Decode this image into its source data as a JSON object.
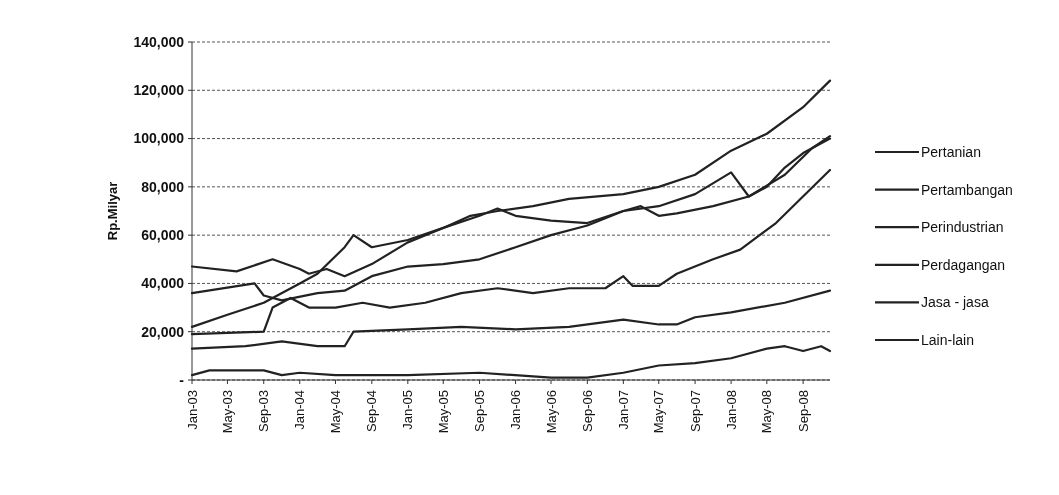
{
  "chart_data": {
    "type": "line",
    "ylabel": "Rp.Milyar",
    "grid": "y",
    "legend": "right",
    "marker": "none",
    "line_style": "solid",
    "xlim": [
      "2003-01",
      "2008-12"
    ],
    "xticks": [
      {
        "value": "2003-01",
        "label": "Jan-03"
      },
      {
        "value": "2003-05",
        "label": "May-03"
      },
      {
        "value": "2003-09",
        "label": "Sep-03"
      },
      {
        "value": "2004-01",
        "label": "Jan-04"
      },
      {
        "value": "2004-05",
        "label": "May-04"
      },
      {
        "value": "2004-09",
        "label": "Sep-04"
      },
      {
        "value": "2005-01",
        "label": "Jan-05"
      },
      {
        "value": "2005-05",
        "label": "May-05"
      },
      {
        "value": "2005-09",
        "label": "Sep-05"
      },
      {
        "value": "2006-01",
        "label": "Jan-06"
      },
      {
        "value": "2006-05",
        "label": "May-06"
      },
      {
        "value": "2006-09",
        "label": "Sep-06"
      },
      {
        "value": "2007-01",
        "label": "Jan-07"
      },
      {
        "value": "2007-05",
        "label": "May-07"
      },
      {
        "value": "2007-09",
        "label": "Sep-07"
      },
      {
        "value": "2008-01",
        "label": "Jan-08"
      },
      {
        "value": "2008-05",
        "label": "May-08"
      },
      {
        "value": "2008-09",
        "label": "Sep-08"
      }
    ],
    "ylim": [
      0,
      140000
    ],
    "yticks": [
      {
        "value": 0,
        "label": "-"
      },
      {
        "value": 20000,
        "label": "20,000"
      },
      {
        "value": 40000,
        "label": "40,000"
      },
      {
        "value": 60000,
        "label": "60,000"
      },
      {
        "value": 80000,
        "label": "80,000"
      },
      {
        "value": 100000,
        "label": "100,000"
      },
      {
        "value": 120000,
        "label": "120,000"
      },
      {
        "value": 140000,
        "label": "140,000"
      }
    ],
    "series": [
      {
        "name": "Pertanian",
        "color": "#222222",
        "x": [
          "2003-01",
          "2003-07",
          "2003-11",
          "2004-03",
          "2004-06",
          "2004-07",
          "2005-01",
          "2005-07",
          "2006-01",
          "2006-07",
          "2007-01",
          "2007-05",
          "2007-07",
          "2007-09",
          "2008-01",
          "2008-07",
          "2008-12"
        ],
        "values": [
          13000,
          14000,
          16000,
          14000,
          14000,
          20000,
          21000,
          22000,
          21000,
          22000,
          25000,
          23000,
          23000,
          26000,
          28000,
          32000,
          37000
        ]
      },
      {
        "name": "Pertambangan",
        "color": "#222222",
        "x": [
          "2003-01",
          "2003-03",
          "2003-09",
          "2003-11",
          "2004-01",
          "2004-05",
          "2005-01",
          "2005-09",
          "2006-05",
          "2006-09",
          "2007-01",
          "2007-05",
          "2007-09",
          "2008-01",
          "2008-05",
          "2008-07",
          "2008-09",
          "2008-11",
          "2008-12"
        ],
        "values": [
          2000,
          4000,
          4000,
          2000,
          3000,
          2000,
          2000,
          3000,
          1000,
          1000,
          3000,
          6000,
          7000,
          9000,
          13000,
          14000,
          12000,
          14000,
          12000
        ]
      },
      {
        "name": "Perindustrian",
        "color": "#222222",
        "x": [
          "2003-01",
          "2003-06",
          "2003-10",
          "2004-01",
          "2004-02",
          "2004-04",
          "2004-06",
          "2004-09",
          "2005-01",
          "2005-05",
          "2005-09",
          "2005-11",
          "2006-01",
          "2006-05",
          "2006-09",
          "2007-01",
          "2007-03",
          "2007-05",
          "2007-07",
          "2007-11",
          "2008-03",
          "2008-07",
          "2008-10",
          "2008-12"
        ],
        "values": [
          47000,
          45000,
          50000,
          46000,
          44000,
          46000,
          43000,
          48000,
          57000,
          63000,
          68000,
          71000,
          68000,
          66000,
          65000,
          70000,
          72000,
          68000,
          69000,
          72000,
          76000,
          85000,
          96000,
          101000
        ]
      },
      {
        "name": "Perdagangan",
        "color": "#222222",
        "x": [
          "2003-01",
          "2003-05",
          "2003-09",
          "2004-01",
          "2004-03",
          "2004-06",
          "2004-07",
          "2004-09",
          "2005-01",
          "2005-05",
          "2005-08",
          "2005-11",
          "2006-03",
          "2006-07",
          "2007-01",
          "2007-05",
          "2007-09",
          "2008-01",
          "2008-05",
          "2008-09",
          "2008-12"
        ],
        "values": [
          22000,
          27000,
          32000,
          40000,
          44000,
          55000,
          60000,
          55000,
          58000,
          63000,
          68000,
          70000,
          72000,
          75000,
          77000,
          80000,
          85000,
          95000,
          102000,
          113000,
          124000
        ]
      },
      {
        "name": "Jasa - jasa",
        "color": "#222222",
        "x": [
          "2003-01",
          "2003-08",
          "2003-09",
          "2003-11",
          "2004-03",
          "2004-06",
          "2004-09",
          "2005-01",
          "2005-05",
          "2005-09",
          "2006-01",
          "2006-05",
          "2006-09",
          "2007-01",
          "2007-05",
          "2007-09",
          "2008-01",
          "2008-03",
          "2008-05",
          "2008-07",
          "2008-09",
          "2008-12"
        ],
        "values": [
          36000,
          40000,
          35000,
          33000,
          36000,
          37000,
          43000,
          47000,
          48000,
          50000,
          55000,
          60000,
          64000,
          70000,
          72000,
          77000,
          86000,
          76000,
          80000,
          88000,
          94000,
          100000
        ]
      },
      {
        "name": "Lain-lain",
        "color": "#222222",
        "x": [
          "2003-01",
          "2003-09",
          "2003-10",
          "2003-12",
          "2004-02",
          "2004-05",
          "2004-08",
          "2004-11",
          "2005-03",
          "2005-07",
          "2005-11",
          "2006-03",
          "2006-07",
          "2006-11",
          "2007-01",
          "2007-02",
          "2007-05",
          "2007-07",
          "2007-11",
          "2008-02",
          "2008-06",
          "2008-12"
        ],
        "values": [
          19000,
          20000,
          30000,
          34000,
          30000,
          30000,
          32000,
          30000,
          32000,
          36000,
          38000,
          36000,
          38000,
          38000,
          43000,
          39000,
          39000,
          44000,
          50000,
          54000,
          65000,
          87000
        ]
      }
    ]
  }
}
